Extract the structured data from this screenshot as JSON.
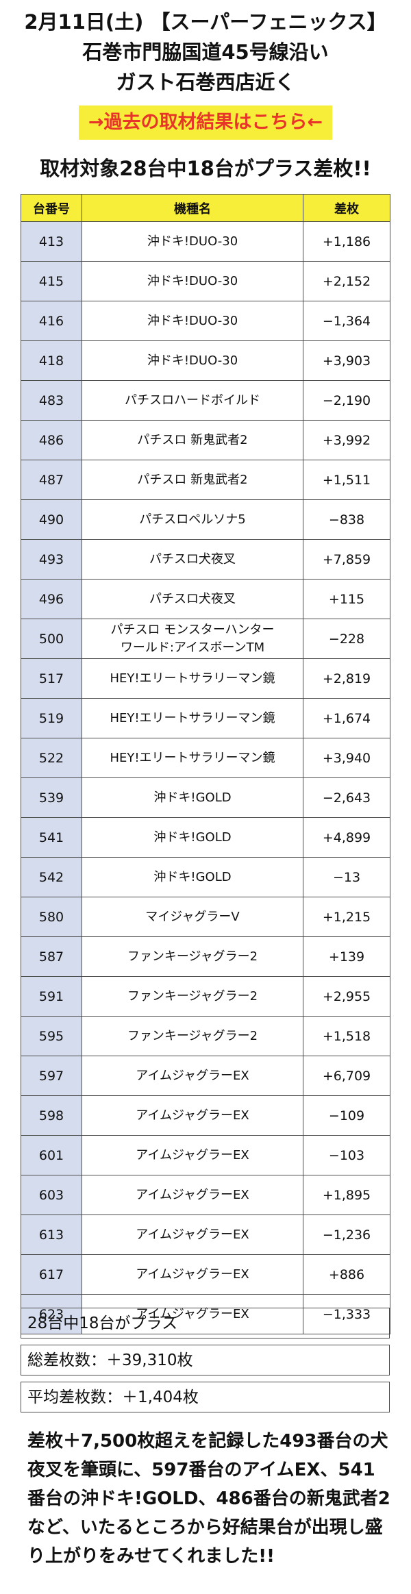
{
  "header": {
    "line1": "2月11日(土) 【スーパーフェニックス】",
    "line2": "石巻市門脇国道45号線沿い",
    "line3": "ガスト石巻西店近く"
  },
  "link_label": "→過去の取材結果はこちら←",
  "subtitle": "取材対象28台中18台がプラス差枚!!",
  "colors": {
    "yellow": "#f7ee3a",
    "link_red": "#e8352a",
    "number_cell": "#d5dcee",
    "border": "#4a4a4a"
  },
  "table": {
    "headers": [
      "台番号",
      "機種名",
      "差枚"
    ],
    "rows": [
      {
        "num": "413",
        "model": "沖ドキ!DUO-30",
        "diff": "+1,186"
      },
      {
        "num": "415",
        "model": "沖ドキ!DUO-30",
        "diff": "+2,152"
      },
      {
        "num": "416",
        "model": "沖ドキ!DUO-30",
        "diff": "−1,364"
      },
      {
        "num": "418",
        "model": "沖ドキ!DUO-30",
        "diff": "+3,903"
      },
      {
        "num": "483",
        "model": "パチスロハードボイルド",
        "diff": "−2,190"
      },
      {
        "num": "486",
        "model": "パチスロ 新鬼武者2",
        "diff": "+3,992"
      },
      {
        "num": "487",
        "model": "パチスロ 新鬼武者2",
        "diff": "+1,511"
      },
      {
        "num": "490",
        "model": "パチスロペルソナ5",
        "diff": "−838"
      },
      {
        "num": "493",
        "model": "パチスロ犬夜叉",
        "diff": "+7,859"
      },
      {
        "num": "496",
        "model": "パチスロ犬夜叉",
        "diff": "+115"
      },
      {
        "num": "500",
        "model": "パチスロ モンスターハンター\nワールド:アイスボーンTM",
        "diff": "−228"
      },
      {
        "num": "517",
        "model": "HEY!エリートサラリーマン鏡",
        "diff": "+2,819"
      },
      {
        "num": "519",
        "model": "HEY!エリートサラリーマン鏡",
        "diff": "+1,674"
      },
      {
        "num": "522",
        "model": "HEY!エリートサラリーマン鏡",
        "diff": "+3,940"
      },
      {
        "num": "539",
        "model": "沖ドキ!GOLD",
        "diff": "−2,643"
      },
      {
        "num": "541",
        "model": "沖ドキ!GOLD",
        "diff": "+4,899"
      },
      {
        "num": "542",
        "model": "沖ドキ!GOLD",
        "diff": "−13"
      },
      {
        "num": "580",
        "model": "マイジャグラーV",
        "diff": "+1,215"
      },
      {
        "num": "587",
        "model": "ファンキージャグラー2",
        "diff": "+139"
      },
      {
        "num": "591",
        "model": "ファンキージャグラー2",
        "diff": "+2,955"
      },
      {
        "num": "595",
        "model": "ファンキージャグラー2",
        "diff": "+1,518"
      },
      {
        "num": "597",
        "model": "アイムジャグラーEX",
        "diff": "+6,709"
      },
      {
        "num": "598",
        "model": "アイムジャグラーEX",
        "diff": "−109"
      },
      {
        "num": "601",
        "model": "アイムジャグラーEX",
        "diff": "−103"
      },
      {
        "num": "603",
        "model": "アイムジャグラーEX",
        "diff": "+1,895"
      },
      {
        "num": "613",
        "model": "アイムジャグラーEX",
        "diff": "−1,236"
      },
      {
        "num": "617",
        "model": "アイムジャグラーEX",
        "diff": "+886"
      },
      {
        "num": "623",
        "model": "アイムジャグラーEX",
        "diff": "−1,333"
      }
    ]
  },
  "summary": {
    "plus_count": "28台中18台がプラス",
    "total": "総差枚数：＋39,310枚",
    "average": "平均差枚数：＋1,404枚"
  },
  "closing": "差枚＋7,500枚超えを記録した493番台の犬夜叉を筆頭に、597番台のアイムEX、541番台の沖ドキ!GOLD、486番台の新鬼武者2など、いたるところから好結果台が出現し盛り上がりをみせてくれました!!"
}
